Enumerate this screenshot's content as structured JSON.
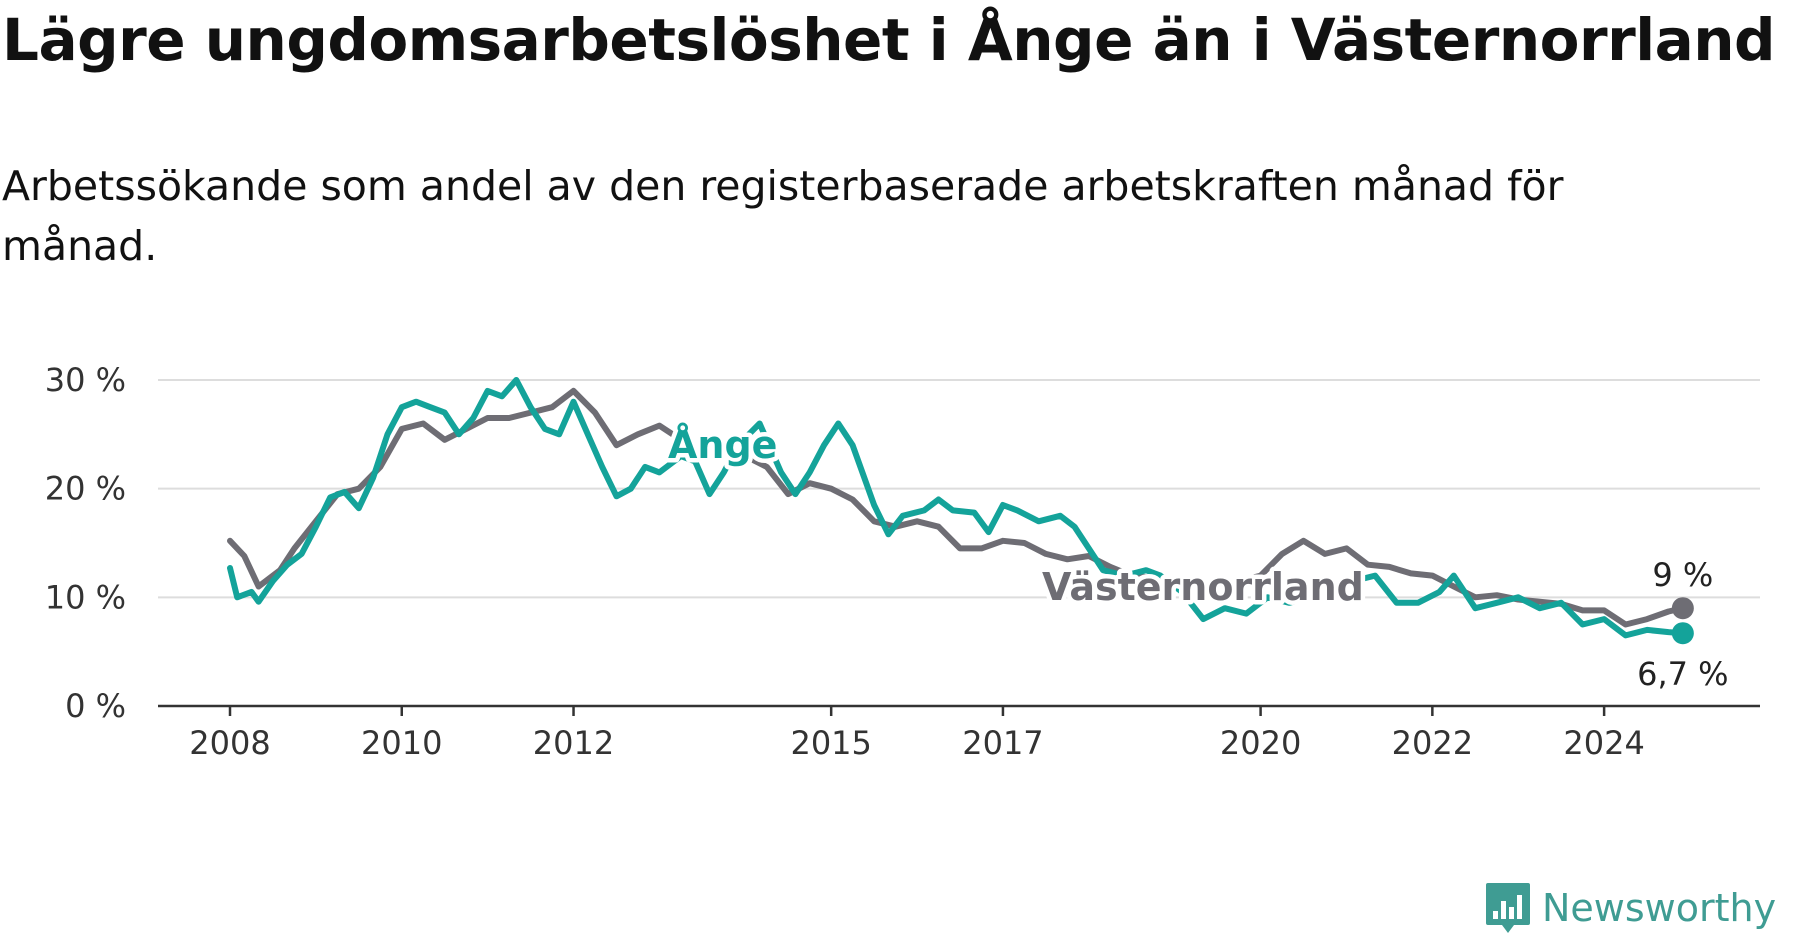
{
  "title": "Lägre ungdomsarbetslöshet i Ånge än i Västernorrland",
  "subtitle": "Arbetssökande som andel av den registerbaserade arbetskraften månad för månad.",
  "brand": "Newsworthy",
  "colors": {
    "ange": "#14a39a",
    "vasternorrland": "#6e6d74",
    "grid": "#dddddd",
    "axis": "#333333"
  },
  "chart_data": {
    "type": "line",
    "title": "Lägre ungdomsarbetslöshet i Ånge än i Västernorrland",
    "subtitle": "Arbetssökande som andel av den registerbaserade arbetskraften månad för månad.",
    "xlabel": "",
    "ylabel": "",
    "x_ticks": [
      "2008",
      "2010",
      "2012",
      "2015",
      "2017",
      "2020",
      "2022",
      "2024"
    ],
    "y_ticks": [
      "0 %",
      "10 %",
      "20 %",
      "30 %"
    ],
    "ylim": [
      0,
      30
    ],
    "xlim": [
      "2008-01",
      "2025-01"
    ],
    "grid": true,
    "legend": "inline labels",
    "series": [
      {
        "name": "Ånge",
        "color": "#14a39a",
        "end_label": "6,7 %",
        "points": [
          [
            "2008-01",
            12.7
          ],
          [
            "2008-02",
            10.0
          ],
          [
            "2008-04",
            10.5
          ],
          [
            "2008-05",
            9.6
          ],
          [
            "2008-07",
            11.5
          ],
          [
            "2008-09",
            13.0
          ],
          [
            "2008-11",
            14.0
          ],
          [
            "2009-01",
            16.5
          ],
          [
            "2009-03",
            19.2
          ],
          [
            "2009-05",
            19.7
          ],
          [
            "2009-07",
            18.2
          ],
          [
            "2009-09",
            21.0
          ],
          [
            "2009-11",
            25.0
          ],
          [
            "2010-01",
            27.5
          ],
          [
            "2010-03",
            28.0
          ],
          [
            "2010-05",
            27.5
          ],
          [
            "2010-07",
            27.0
          ],
          [
            "2010-09",
            25.0
          ],
          [
            "2010-11",
            26.5
          ],
          [
            "2011-01",
            29.0
          ],
          [
            "2011-03",
            28.5
          ],
          [
            "2011-05",
            30.0
          ],
          [
            "2011-07",
            27.5
          ],
          [
            "2011-09",
            25.5
          ],
          [
            "2011-11",
            25.0
          ],
          [
            "2012-01",
            28.0
          ],
          [
            "2012-03",
            25.0
          ],
          [
            "2012-05",
            22.0
          ],
          [
            "2012-07",
            19.3
          ],
          [
            "2012-09",
            20.0
          ],
          [
            "2012-11",
            22.0
          ],
          [
            "2013-01",
            21.5
          ],
          [
            "2013-04",
            23.0
          ],
          [
            "2013-06",
            22.5
          ],
          [
            "2013-08",
            19.5
          ],
          [
            "2013-10",
            21.5
          ],
          [
            "2013-12",
            24.0
          ],
          [
            "2014-03",
            26.0
          ],
          [
            "2014-06",
            21.5
          ],
          [
            "2014-08",
            19.5
          ],
          [
            "2014-10",
            21.5
          ],
          [
            "2014-12",
            24.0
          ],
          [
            "2015-02",
            26.0
          ],
          [
            "2015-04",
            24.0
          ],
          [
            "2015-07",
            18.5
          ],
          [
            "2015-09",
            15.8
          ],
          [
            "2015-11",
            17.5
          ],
          [
            "2016-02",
            18.0
          ],
          [
            "2016-04",
            19.0
          ],
          [
            "2016-06",
            18.0
          ],
          [
            "2016-09",
            17.8
          ],
          [
            "2016-11",
            16.0
          ],
          [
            "2017-01",
            18.5
          ],
          [
            "2017-03",
            18.0
          ],
          [
            "2017-06",
            17.0
          ],
          [
            "2017-09",
            17.5
          ],
          [
            "2017-11",
            16.5
          ],
          [
            "2018-01",
            14.5
          ],
          [
            "2018-03",
            12.5
          ],
          [
            "2018-06",
            12.0
          ],
          [
            "2018-09",
            12.5
          ],
          [
            "2018-11",
            12.0
          ],
          [
            "2019-02",
            10.5
          ],
          [
            "2019-05",
            8.0
          ],
          [
            "2019-08",
            9.0
          ],
          [
            "2019-11",
            8.5
          ],
          [
            "2020-02",
            10.0
          ],
          [
            "2020-05",
            9.5
          ],
          [
            "2020-08",
            10.0
          ],
          [
            "2020-11",
            11.0
          ],
          [
            "2021-02",
            11.5
          ],
          [
            "2021-05",
            12.0
          ],
          [
            "2021-08",
            9.5
          ],
          [
            "2021-11",
            9.5
          ],
          [
            "2022-02",
            10.5
          ],
          [
            "2022-04",
            12.0
          ],
          [
            "2022-07",
            9.0
          ],
          [
            "2022-10",
            9.5
          ],
          [
            "2023-01",
            10.0
          ],
          [
            "2023-04",
            9.0
          ],
          [
            "2023-07",
            9.5
          ],
          [
            "2023-10",
            7.5
          ],
          [
            "2024-01",
            8.0
          ],
          [
            "2024-04",
            6.5
          ],
          [
            "2024-07",
            7.0
          ],
          [
            "2024-10",
            6.8
          ],
          [
            "2024-12",
            6.7
          ]
        ]
      },
      {
        "name": "Västernorrland",
        "color": "#6e6d74",
        "end_label": "9 %",
        "points": [
          [
            "2008-01",
            15.2
          ],
          [
            "2008-03",
            13.8
          ],
          [
            "2008-05",
            11.0
          ],
          [
            "2008-08",
            12.5
          ],
          [
            "2008-10",
            14.5
          ],
          [
            "2009-01",
            17.0
          ],
          [
            "2009-04",
            19.5
          ],
          [
            "2009-07",
            20.0
          ],
          [
            "2009-10",
            22.0
          ],
          [
            "2010-01",
            25.5
          ],
          [
            "2010-04",
            26.0
          ],
          [
            "2010-07",
            24.5
          ],
          [
            "2010-10",
            25.5
          ],
          [
            "2011-01",
            26.5
          ],
          [
            "2011-04",
            26.5
          ],
          [
            "2011-07",
            27.0
          ],
          [
            "2011-10",
            27.5
          ],
          [
            "2012-01",
            29.0
          ],
          [
            "2012-04",
            27.0
          ],
          [
            "2012-07",
            24.0
          ],
          [
            "2012-10",
            25.0
          ],
          [
            "2013-01",
            25.8
          ],
          [
            "2013-04",
            24.5
          ],
          [
            "2013-07",
            23.0
          ],
          [
            "2013-10",
            23.5
          ],
          [
            "2014-01",
            23.0
          ],
          [
            "2014-04",
            22.0
          ],
          [
            "2014-07",
            19.5
          ],
          [
            "2014-10",
            20.5
          ],
          [
            "2015-01",
            20.0
          ],
          [
            "2015-04",
            19.0
          ],
          [
            "2015-07",
            17.0
          ],
          [
            "2015-10",
            16.5
          ],
          [
            "2016-01",
            17.0
          ],
          [
            "2016-04",
            16.5
          ],
          [
            "2016-07",
            14.5
          ],
          [
            "2016-10",
            14.5
          ],
          [
            "2017-01",
            15.2
          ],
          [
            "2017-04",
            15.0
          ],
          [
            "2017-07",
            14.0
          ],
          [
            "2017-10",
            13.5
          ],
          [
            "2018-01",
            13.8
          ],
          [
            "2018-04",
            12.8
          ],
          [
            "2018-07",
            12.0
          ],
          [
            "2018-10",
            11.8
          ],
          [
            "2019-01",
            11.5
          ],
          [
            "2019-04",
            11.2
          ],
          [
            "2019-07",
            11.3
          ],
          [
            "2019-10",
            11.5
          ],
          [
            "2020-01",
            12.0
          ],
          [
            "2020-04",
            14.0
          ],
          [
            "2020-07",
            15.2
          ],
          [
            "2020-10",
            14.0
          ],
          [
            "2021-01",
            14.5
          ],
          [
            "2021-04",
            13.0
          ],
          [
            "2021-07",
            12.8
          ],
          [
            "2021-10",
            12.2
          ],
          [
            "2022-01",
            12.0
          ],
          [
            "2022-04",
            11.0
          ],
          [
            "2022-07",
            10.0
          ],
          [
            "2022-10",
            10.2
          ],
          [
            "2023-01",
            9.8
          ],
          [
            "2023-04",
            9.6
          ],
          [
            "2023-07",
            9.4
          ],
          [
            "2023-10",
            8.8
          ],
          [
            "2024-01",
            8.8
          ],
          [
            "2024-04",
            7.5
          ],
          [
            "2024-07",
            8.0
          ],
          [
            "2024-10",
            8.7
          ],
          [
            "2024-12",
            9.0
          ]
        ]
      }
    ]
  }
}
